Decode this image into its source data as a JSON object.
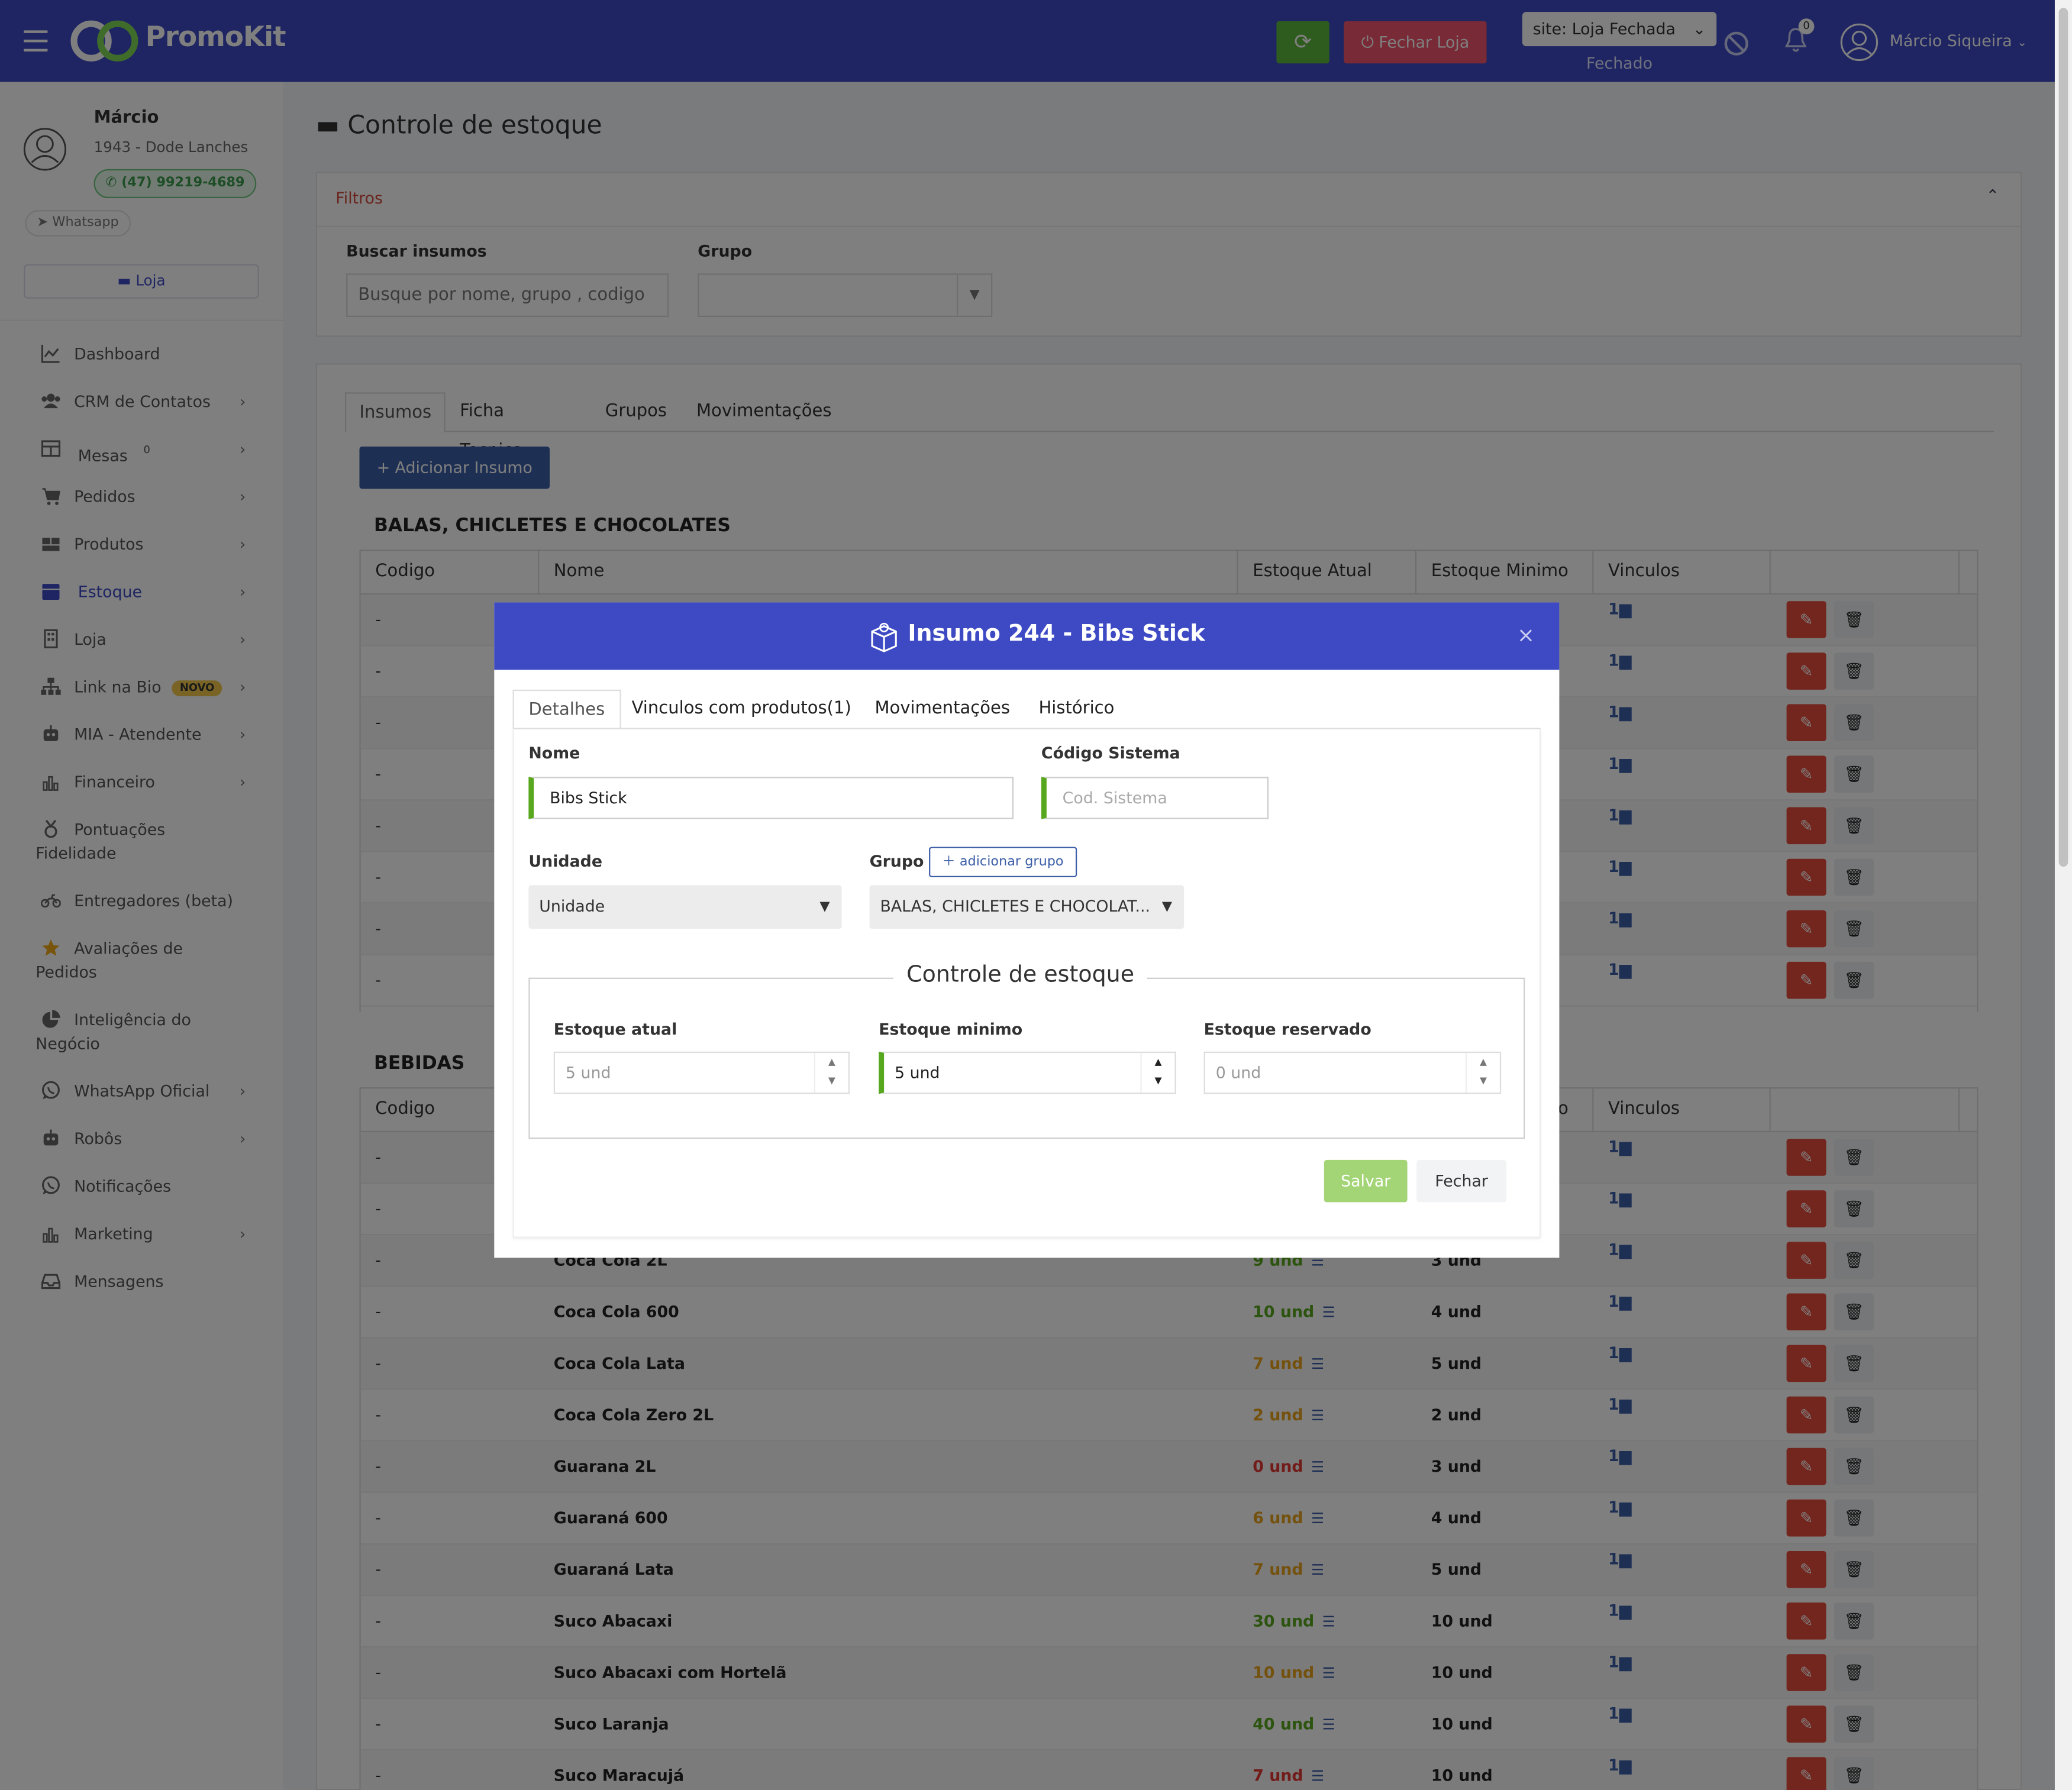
{
  "topbar": {
    "logo": "PromoKit",
    "fechar_loja": "Fechar Loja",
    "site_select": "site: Loja Fechada",
    "site_status": "Fechado",
    "notifications": "0",
    "user_name": "Márcio Siqueira"
  },
  "profile": {
    "name": "Márcio",
    "store": "1943 - Dode Lanches",
    "phone": "(47) 99219-4689",
    "whatsapp": "Whatsapp",
    "loja": "Loja"
  },
  "menu": [
    {
      "label": "Dashboard",
      "icon": "chart-line-icon",
      "chevron": false
    },
    {
      "label": "CRM de Contatos",
      "icon": "users-icon",
      "chevron": true
    },
    {
      "label": "Mesas",
      "icon": "table-icon",
      "chevron": true,
      "count": "0"
    },
    {
      "label": "Pedidos",
      "icon": "cart-icon",
      "chevron": true
    },
    {
      "label": "Produtos",
      "icon": "boxes-icon",
      "chevron": true
    },
    {
      "label": "Estoque",
      "icon": "box-icon",
      "chevron": true,
      "active": true
    },
    {
      "label": "Loja",
      "icon": "building-icon",
      "chevron": true
    },
    {
      "label": "Link na Bio",
      "icon": "sitemap-icon",
      "chevron": true,
      "badge": "NOVO"
    },
    {
      "label": "MIA - Atendente",
      "icon": "robot-icon",
      "chevron": true
    },
    {
      "label": "Financeiro",
      "icon": "bar-chart-icon",
      "chevron": true
    },
    {
      "label": "Pontuações",
      "label2": "Fidelidade",
      "icon": "medal-icon",
      "chevron": false
    },
    {
      "label": "Entregadores (beta)",
      "icon": "motorcycle-icon",
      "chevron": false
    },
    {
      "label": "Avaliações de",
      "label2": "Pedidos",
      "icon": "star-icon",
      "chevron": false
    },
    {
      "label": "Inteligência do",
      "label2": "Negócio",
      "icon": "pie-chart-icon",
      "chevron": false
    },
    {
      "label": "WhatsApp Oficial",
      "icon": "whatsapp-icon",
      "chevron": true
    },
    {
      "label": "Robôs",
      "icon": "robot-icon",
      "chevron": true
    },
    {
      "label": "Notificações",
      "icon": "whatsapp-icon",
      "chevron": false
    },
    {
      "label": "Marketing",
      "icon": "bar-chart-icon",
      "chevron": true
    },
    {
      "label": "Mensagens",
      "icon": "inbox-icon",
      "chevron": false
    }
  ],
  "page": {
    "title": "Controle de estoque",
    "filters": {
      "title": "Filtros",
      "search_label": "Buscar insumos",
      "search_placeholder": "Busque por nome, grupo , codigo",
      "group_label": "Grupo"
    },
    "tabs": [
      "Insumos",
      "Ficha Tecnica",
      "Grupos",
      "Movimentações"
    ],
    "add_button": "+ Adicionar Insumo",
    "columns": [
      "Codigo",
      "Nome",
      "Estoque Atual",
      "Estoque Minimo",
      "Vinculos"
    ],
    "group1": {
      "title": "BALAS, CHICLETES E CHOCOLATES",
      "rows": [
        {
          "code": "-",
          "vinc": "1"
        },
        {
          "code": "-",
          "vinc": "1"
        },
        {
          "code": "-",
          "vinc": "1"
        },
        {
          "code": "-",
          "vinc": "1"
        },
        {
          "code": "-",
          "vinc": "1"
        },
        {
          "code": "-",
          "vinc": "1"
        },
        {
          "code": "-",
          "vinc": "1"
        },
        {
          "code": "-",
          "vinc": "1"
        }
      ]
    },
    "group2": {
      "title": "BEBIDAS",
      "rows": [
        {
          "code": "-",
          "name": "",
          "stock": "",
          "min": "",
          "vinc": "1",
          "level": "green"
        },
        {
          "code": "-",
          "name": "",
          "stock": "",
          "min": "",
          "vinc": "1",
          "level": "green"
        },
        {
          "code": "-",
          "name": "Coca Cola 2L",
          "stock": "9 und",
          "min": "3 und",
          "vinc": "1",
          "level": "green"
        },
        {
          "code": "-",
          "name": "Coca Cola 600",
          "stock": "10 und",
          "min": "4 und",
          "vinc": "1",
          "level": "green"
        },
        {
          "code": "-",
          "name": "Coca Cola Lata",
          "stock": "7 und",
          "min": "5 und",
          "vinc": "1",
          "level": "orange"
        },
        {
          "code": "-",
          "name": "Coca Cola Zero 2L",
          "stock": "2 und",
          "min": "2 und",
          "vinc": "1",
          "level": "orange"
        },
        {
          "code": "-",
          "name": "Guarana 2L",
          "stock": "0 und",
          "min": "3 und",
          "vinc": "1",
          "level": "red"
        },
        {
          "code": "-",
          "name": "Guaraná 600",
          "stock": "6 und",
          "min": "4 und",
          "vinc": "1",
          "level": "orange"
        },
        {
          "code": "-",
          "name": "Guaraná Lata",
          "stock": "7 und",
          "min": "5 und",
          "vinc": "1",
          "level": "orange"
        },
        {
          "code": "-",
          "name": "Suco Abacaxi",
          "stock": "30 und",
          "min": "10 und",
          "vinc": "1",
          "level": "green"
        },
        {
          "code": "-",
          "name": "Suco Abacaxi com Hortelã",
          "stock": "10 und",
          "min": "10 und",
          "vinc": "1",
          "level": "orange"
        },
        {
          "code": "-",
          "name": "Suco Laranja",
          "stock": "40 und",
          "min": "10 und",
          "vinc": "1",
          "level": "green"
        },
        {
          "code": "-",
          "name": "Suco Maracujá",
          "stock": "7 und",
          "min": "10 und",
          "vinc": "1",
          "level": "red"
        }
      ]
    }
  },
  "modal": {
    "title": "Insumo 244 - Bibs Stick",
    "tabs": [
      "Detalhes",
      "Vinculos com produtos(1)",
      "Movimentações",
      "Histórico"
    ],
    "nome_label": "Nome",
    "nome_value": "Bibs Stick",
    "codigo_label": "Código Sistema",
    "codigo_placeholder": "Cod. Sistema",
    "unidade_label": "Unidade",
    "unidade_value": "Unidade",
    "grupo_label": "Grupo",
    "add_grupo": "adicionar grupo",
    "grupo_value": "BALAS, CHICLETES E CHOCOLAT...",
    "fieldset_title": "Controle de estoque",
    "estoque_atual_label": "Estoque atual",
    "estoque_atual_value": "5 und",
    "estoque_minimo_label": "Estoque minimo",
    "estoque_minimo_value": "5 und",
    "estoque_reservado_label": "Estoque reservado",
    "estoque_reservado_value": "0 und",
    "salvar": "Salvar",
    "fechar": "Fechar"
  },
  "colors": {
    "primary": "#3d4ac4",
    "success": "#5cb83c",
    "danger": "#e74c3c",
    "warning": "#e8a31b"
  }
}
